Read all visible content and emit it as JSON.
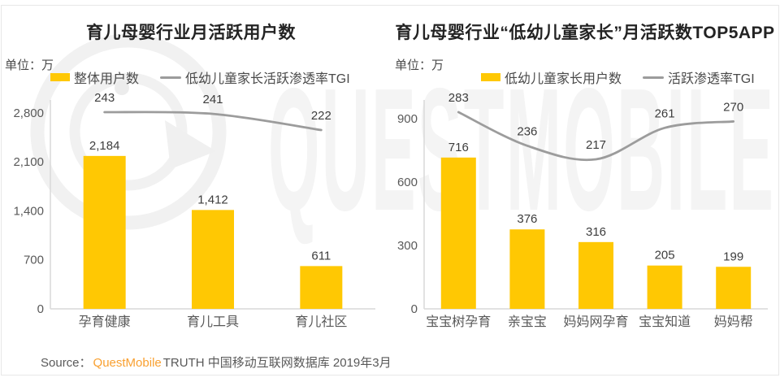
{
  "watermark": {
    "text": "QUESTMOBILE",
    "logo": "questmobile-bubble-q"
  },
  "colors": {
    "bar_yellow": "#FFC803",
    "line_gray": "#9C9C9C",
    "axis_gray": "#D9D9D9",
    "text_dark": "#3D3D3D",
    "text_mid": "#595959",
    "brand_orange": "#F9A030"
  },
  "source": {
    "prefix": "Source：",
    "brand": "QuestMobile",
    "suffix": "TRUTH 中国移动互联网数据库 2019年3月"
  },
  "chart_data": [
    {
      "type": "bar+line",
      "title": "育儿母婴行业月活跃用户数",
      "unit_label": "单位：万",
      "legend_position": "top",
      "grid": false,
      "categories": [
        "孕育健康",
        "育儿工具",
        "育儿社区"
      ],
      "y_axis": {
        "tick_labels": [
          "0",
          "700",
          "1,400",
          "2,100",
          "2,800"
        ],
        "tick_values": [
          0,
          700,
          1400,
          2100,
          2800
        ],
        "ylim": [
          0,
          2980
        ]
      },
      "series": [
        {
          "name": "整体用户数",
          "type": "bar",
          "values": [
            2184,
            1412,
            611
          ],
          "labels": [
            "2,184",
            "1,412",
            "611"
          ],
          "color": "#FFC803"
        },
        {
          "name": "低幼儿童家长活跃渗透率TGI",
          "type": "line",
          "values": [
            243,
            241,
            222
          ],
          "labels": [
            "243",
            "241",
            "222"
          ],
          "color": "#9C9C9C"
        }
      ]
    },
    {
      "type": "bar+line",
      "title": "育儿母婴行业“低幼儿童家长”月活跃数TOP5APP",
      "unit_label": "单位：万",
      "legend_position": "top",
      "grid": false,
      "categories": [
        "宝宝树孕育",
        "亲宝宝",
        "妈妈网孕育",
        "宝宝知道",
        "妈妈帮"
      ],
      "y_axis": {
        "tick_labels": [
          "0",
          "300",
          "600",
          "900"
        ],
        "tick_values": [
          0,
          300,
          600,
          900
        ],
        "ylim": [
          0,
          990
        ]
      },
      "series": [
        {
          "name": "低幼儿童家长用户数",
          "type": "bar",
          "values": [
            716,
            376,
            316,
            205,
            199
          ],
          "labels": [
            "716",
            "376",
            "316",
            "205",
            "199"
          ],
          "color": "#FFC803"
        },
        {
          "name": "活跃渗透率TGI",
          "type": "line",
          "values": [
            283,
            236,
            217,
            261,
            270
          ],
          "labels": [
            "283",
            "236",
            "217",
            "261",
            "270"
          ],
          "color": "#9C9C9C"
        }
      ]
    }
  ]
}
